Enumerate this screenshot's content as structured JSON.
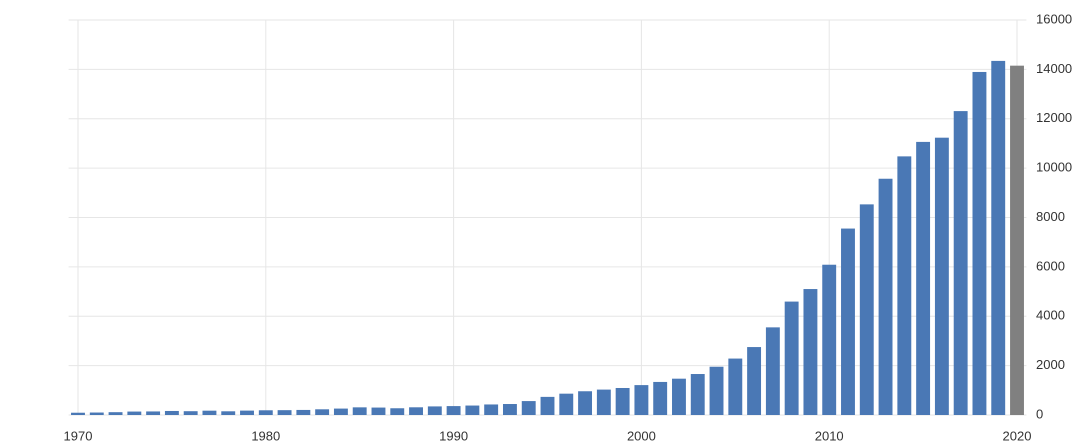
{
  "chart_data": {
    "type": "bar",
    "categories": [
      "1970",
      null,
      null,
      null,
      null,
      null,
      null,
      null,
      null,
      null,
      "1980",
      null,
      null,
      null,
      null,
      null,
      null,
      null,
      null,
      null,
      "1990",
      null,
      null,
      null,
      null,
      null,
      null,
      null,
      null,
      null,
      "2000",
      null,
      null,
      null,
      null,
      null,
      null,
      null,
      null,
      null,
      "2010",
      null,
      null,
      null,
      null,
      null,
      null,
      null,
      null,
      null,
      "2020"
    ],
    "values": [
      92,
      100,
      114,
      139,
      144,
      163,
      154,
      175,
      150,
      178,
      191,
      196,
      205,
      231,
      260,
      310,
      301,
      273,
      312,
      348,
      361,
      383,
      427,
      445,
      564,
      734,
      864,
      962,
      1029,
      1094,
      1211,
      1339,
      1471,
      1660,
      1955,
      2286,
      2752,
      3550,
      4594,
      5102,
      6087,
      7552,
      8532,
      9570,
      10476,
      11062,
      11233,
      12310,
      13895,
      14343,
      14150
    ],
    "color": "#4a78b5",
    "last_color": "#808080",
    "ylim": [
      0,
      16000
    ],
    "yticks": [
      0,
      2000,
      4000,
      6000,
      8000,
      10000,
      12000,
      14000,
      16000
    ],
    "grid": true
  }
}
